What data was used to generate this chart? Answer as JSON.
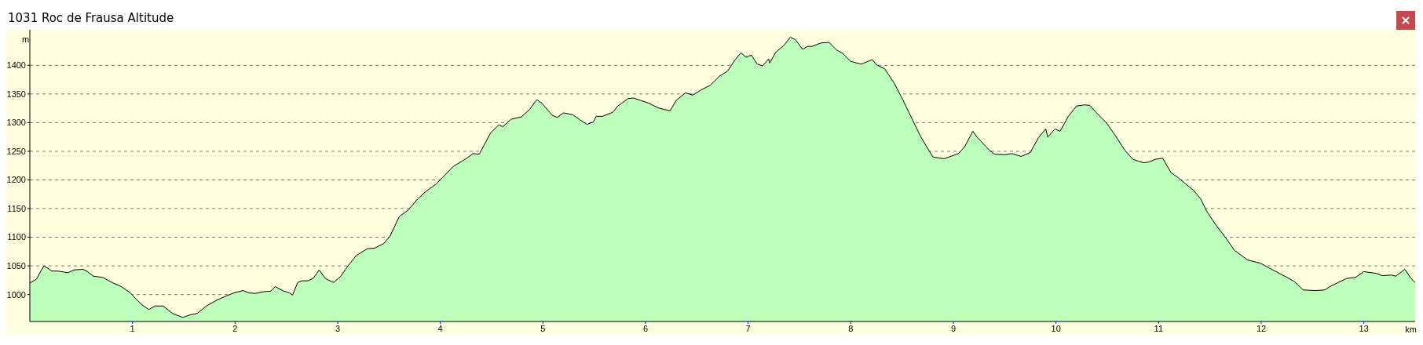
{
  "chart_data": {
    "type": "area",
    "title": "1031 Roc de Frausa Altitude",
    "xlabel": "km",
    "ylabel": "m",
    "xlim": [
      0,
      13.5
    ],
    "ylim": [
      953,
      1462
    ],
    "xticks": [
      1,
      2,
      3,
      4,
      5,
      6,
      7,
      8,
      9,
      10,
      11,
      12,
      13
    ],
    "yticks": [
      1000,
      1050,
      1100,
      1150,
      1200,
      1250,
      1300,
      1350,
      1400
    ],
    "grid": "y",
    "line_style": "dashed",
    "x": [
      0,
      0.065,
      0.11,
      0.14,
      0.215,
      0.275,
      0.37,
      0.43,
      0.52,
      0.56,
      0.62,
      0.71,
      0.8,
      0.89,
      0.98,
      1.03,
      1.1,
      1.16,
      1.22,
      1.3,
      1.39,
      1.49,
      1.57,
      1.63,
      1.72,
      1.83,
      1.92,
      1.99,
      2.08,
      2.13,
      2.2,
      2.28,
      2.35,
      2.39,
      2.46,
      2.53,
      2.56,
      2.61,
      2.65,
      2.71,
      2.76,
      2.82,
      2.88,
      2.96,
      3.03,
      3.1,
      3.18,
      3.29,
      3.36,
      3.45,
      3.51,
      3.6,
      3.69,
      3.78,
      3.86,
      3.96,
      4.02,
      4.13,
      4.25,
      4.32,
      4.38,
      4.46,
      4.49,
      4.57,
      4.61,
      4.69,
      4.79,
      4.87,
      4.94,
      4.99,
      5.09,
      5.14,
      5.2,
      5.29,
      5.36,
      5.43,
      5.49,
      5.52,
      5.58,
      5.68,
      5.73,
      5.83,
      5.88,
      5.95,
      6.03,
      6.12,
      6.18,
      6.24,
      6.3,
      6.39,
      6.46,
      6.54,
      6.63,
      6.72,
      6.8,
      6.87,
      6.93,
      6.98,
      7.03,
      7.09,
      7.14,
      7.2,
      7.21,
      7.27,
      7.35,
      7.41,
      7.46,
      7.53,
      7.58,
      7.62,
      7.71,
      7.79,
      7.86,
      7.92,
      8.0,
      8.1,
      8.21,
      8.25,
      8.33,
      8.42,
      8.51,
      8.58,
      8.68,
      8.8,
      8.91,
      9.05,
      9.11,
      9.19,
      9.23,
      9.35,
      9.4,
      9.5,
      9.57,
      9.66,
      9.75,
      9.83,
      9.9,
      9.92,
      9.99,
      10.04,
      10.12,
      10.2,
      10.28,
      10.33,
      10.39,
      10.49,
      10.58,
      10.67,
      10.75,
      10.85,
      10.9,
      10.97,
      11.04,
      11.12,
      11.19,
      11.25,
      11.34,
      11.41,
      11.47,
      11.56,
      11.65,
      11.74,
      11.87,
      11.99,
      12.08,
      12.23,
      12.32,
      12.41,
      12.53,
      12.62,
      12.68,
      12.83,
      12.92,
      13.0,
      13.12,
      13.18,
      13.27,
      13.31,
      13.4,
      13.46,
      13.5
    ],
    "series": [
      {
        "color": "#bbffbb",
        "values": [
          1020,
          1027,
          1042,
          1050,
          1041,
          1041,
          1038,
          1043,
          1044,
          1040,
          1032,
          1030,
          1021,
          1014,
          1003,
          993,
          981,
          974,
          980,
          980,
          967,
          960,
          965,
          967,
          980,
          991,
          998,
          1003,
          1007,
          1003,
          1002,
          1005,
          1006,
          1014,
          1007,
          1003,
          999,
          1021,
          1024,
          1024,
          1028,
          1043,
          1028,
          1021,
          1032,
          1050,
          1068,
          1080,
          1081,
          1089,
          1102,
          1136,
          1148,
          1167,
          1180,
          1193,
          1204,
          1224,
          1237,
          1246,
          1245,
          1272,
          1282,
          1296,
          1293,
          1306,
          1310,
          1323,
          1340,
          1334,
          1313,
          1309,
          1317,
          1314,
          1305,
          1297,
          1301,
          1311,
          1311,
          1318,
          1329,
          1342,
          1343,
          1339,
          1334,
          1326,
          1323,
          1321,
          1339,
          1352,
          1348,
          1357,
          1365,
          1381,
          1390,
          1409,
          1422,
          1414,
          1418,
          1402,
          1399,
          1411,
          1404,
          1423,
          1435,
          1449,
          1445,
          1428,
          1433,
          1433,
          1439,
          1440,
          1427,
          1421,
          1407,
          1402,
          1410,
          1401,
          1394,
          1370,
          1339,
          1313,
          1276,
          1240,
          1237,
          1246,
          1258,
          1285,
          1275,
          1252,
          1245,
          1244,
          1246,
          1241,
          1248,
          1274,
          1289,
          1275,
          1289,
          1285,
          1311,
          1329,
          1331,
          1330,
          1318,
          1300,
          1277,
          1252,
          1236,
          1230,
          1231,
          1236,
          1238,
          1213,
          1204,
          1195,
          1182,
          1167,
          1145,
          1121,
          1100,
          1077,
          1060,
          1055,
          1046,
          1032,
          1023,
          1008,
          1007,
          1008,
          1015,
          1028,
          1030,
          1040,
          1037,
          1033,
          1034,
          1032,
          1044,
          1028,
          1021
        ]
      }
    ]
  }
}
